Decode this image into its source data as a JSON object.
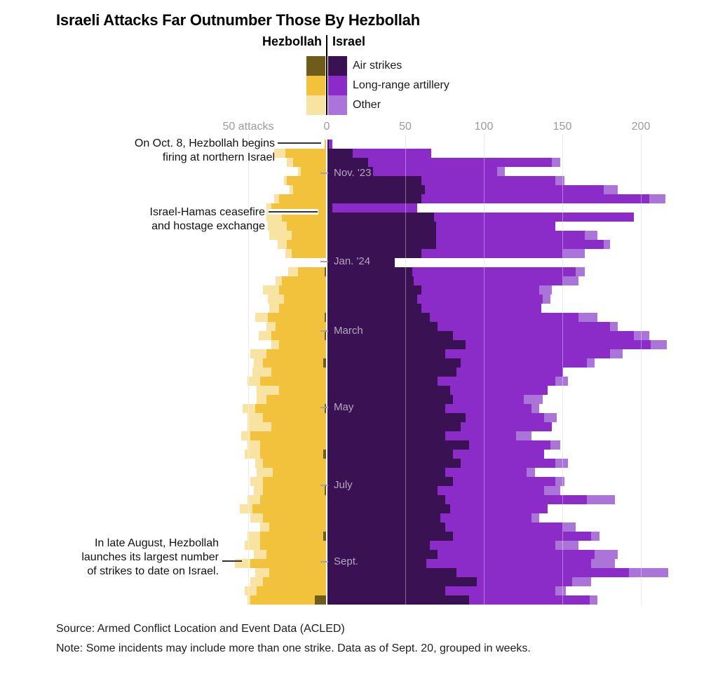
{
  "title": "Israeli Attacks Far Outnumber Those By Hezbollah",
  "legend": {
    "left_group": "Hezbollah",
    "right_group": "Israel",
    "items": [
      {
        "label": "Air strikes"
      },
      {
        "label": "Long-range artillery"
      },
      {
        "label": "Other"
      }
    ]
  },
  "annotations": [
    {
      "lines": [
        "On Oct. 8, Hezbollah begins",
        "firing at northern Israel"
      ]
    },
    {
      "lines": [
        "Israel-Hamas ceasefire",
        "and hostage exchange"
      ]
    },
    {
      "lines": [
        "In late August, Hezbollah",
        "launches its largest number",
        "of strikes to date on Israel."
      ]
    }
  ],
  "source": "Source: Armed Conflict Location and Event Data (ACLED)",
  "note": "Note: Some incidents may include more than one strike. Data as of Sept. 20, grouped in weeks.",
  "chart_data": {
    "type": "bar",
    "subtype": "diverging-stacked-horizontal",
    "unit": "attacks per week",
    "sides": {
      "left": "Hezbollah",
      "right": "Israel"
    },
    "categories": [
      "Air strikes",
      "Long-range artillery",
      "Other"
    ],
    "colors": {
      "hezbollah": [
        "#6f5c1b",
        "#f2c23d",
        "#f9e3a2"
      ],
      "israel": [
        "#3a1152",
        "#8b2cc9",
        "#ab74d9"
      ]
    },
    "x_axis": {
      "gridline_values": [
        -50,
        50,
        100,
        150,
        200
      ],
      "labels": [
        {
          "value": -50,
          "text": "50 attacks"
        },
        {
          "value": 0,
          "text": "0"
        },
        {
          "value": 50,
          "text": "50"
        },
        {
          "value": 100,
          "text": "100"
        },
        {
          "value": 150,
          "text": "150"
        },
        {
          "value": 200,
          "text": "200"
        }
      ]
    },
    "month_ticks": [
      {
        "label": "Nov. '23",
        "week": 3.7
      },
      {
        "label": "Jan. '24",
        "week": 13.35
      },
      {
        "label": "March",
        "week": 21.0
      },
      {
        "label": "May",
        "week": 29.4
      },
      {
        "label": "July",
        "week": 37.9
      },
      {
        "label": "Sept.",
        "week": 46.3
      }
    ],
    "weeks": [
      {
        "hezbollah": [
          0,
          1,
          0
        ],
        "israel": [
          1,
          2,
          0
        ]
      },
      {
        "hezbollah": [
          0,
          26,
          7
        ],
        "israel": [
          16,
          50,
          0
        ]
      },
      {
        "hezbollah": [
          0,
          21,
          4
        ],
        "israel": [
          26,
          117,
          5
        ]
      },
      {
        "hezbollah": [
          0,
          16,
          2
        ],
        "israel": [
          29,
          79,
          5
        ]
      },
      {
        "hezbollah": [
          0,
          25,
          2
        ],
        "israel": [
          60,
          85,
          6
        ]
      },
      {
        "hezbollah": [
          0,
          21,
          2
        ],
        "israel": [
          62,
          114,
          9
        ]
      },
      {
        "hezbollah": [
          0,
          30,
          3
        ],
        "israel": [
          60,
          145,
          10
        ]
      },
      {
        "hezbollah": [
          0,
          35,
          3
        ],
        "israel": [
          3,
          54,
          0
        ]
      },
      {
        "hezbollah": [
          0,
          28,
          10
        ],
        "israel": [
          68,
          127,
          0
        ]
      },
      {
        "hezbollah": [
          0,
          25,
          12
        ],
        "israel": [
          69,
          76,
          0
        ]
      },
      {
        "hezbollah": [
          0,
          22,
          14
        ],
        "israel": [
          69,
          95,
          8
        ]
      },
      {
        "hezbollah": [
          0,
          25,
          6
        ],
        "israel": [
          69,
          107,
          4
        ]
      },
      {
        "hezbollah": [
          0,
          22,
          4
        ],
        "israel": [
          60,
          90,
          14
        ]
      },
      {
        "hezbollah": [
          0,
          0,
          0
        ],
        "israel": [
          43,
          0,
          0
        ]
      },
      {
        "hezbollah": [
          1,
          17,
          6
        ],
        "israel": [
          54,
          104,
          6
        ]
      },
      {
        "hezbollah": [
          0,
          28,
          4
        ],
        "israel": [
          55,
          95,
          10
        ]
      },
      {
        "hezbollah": [
          0,
          30,
          10
        ],
        "israel": [
          60,
          75,
          8
        ]
      },
      {
        "hezbollah": [
          0,
          27,
          10
        ],
        "israel": [
          57,
          80,
          5
        ]
      },
      {
        "hezbollah": [
          0,
          30,
          6
        ],
        "israel": [
          60,
          76,
          0
        ]
      },
      {
        "hezbollah": [
          1,
          36,
          8
        ],
        "israel": [
          65,
          95,
          12
        ]
      },
      {
        "hezbollah": [
          0,
          32,
          6
        ],
        "israel": [
          70,
          110,
          5
        ]
      },
      {
        "hezbollah": [
          1,
          34,
          8
        ],
        "israel": [
          80,
          115,
          10
        ]
      },
      {
        "hezbollah": [
          0,
          30,
          5
        ],
        "israel": [
          88,
          118,
          10
        ]
      },
      {
        "hezbollah": [
          0,
          38,
          10
        ],
        "israel": [
          75,
          105,
          8
        ]
      },
      {
        "hezbollah": [
          2,
          38,
          6
        ],
        "israel": [
          85,
          80,
          5
        ]
      },
      {
        "hezbollah": [
          0,
          35,
          12
        ],
        "israel": [
          82,
          68,
          0
        ]
      },
      {
        "hezbollah": [
          0,
          42,
          8
        ],
        "israel": [
          70,
          75,
          8
        ]
      },
      {
        "hezbollah": [
          0,
          30,
          14
        ],
        "israel": [
          78,
          62,
          0
        ]
      },
      {
        "hezbollah": [
          0,
          38,
          6
        ],
        "israel": [
          80,
          45,
          12
        ]
      },
      {
        "hezbollah": [
          1,
          44,
          8
        ],
        "israel": [
          75,
          55,
          5
        ]
      },
      {
        "hezbollah": [
          0,
          40,
          10
        ],
        "israel": [
          88,
          50,
          8
        ]
      },
      {
        "hezbollah": [
          0,
          35,
          15
        ],
        "israel": [
          85,
          58,
          0
        ]
      },
      {
        "hezbollah": [
          0,
          48,
          6
        ],
        "israel": [
          75,
          45,
          10
        ]
      },
      {
        "hezbollah": [
          0,
          42,
          8
        ],
        "israel": [
          90,
          52,
          6
        ]
      },
      {
        "hezbollah": [
          2,
          40,
          10
        ],
        "israel": [
          80,
          58,
          0
        ]
      },
      {
        "hezbollah": [
          0,
          40,
          5
        ],
        "israel": [
          85,
          60,
          8
        ]
      },
      {
        "hezbollah": [
          0,
          34,
          10
        ],
        "israel": [
          75,
          52,
          5
        ]
      },
      {
        "hezbollah": [
          0,
          40,
          8
        ],
        "israel": [
          80,
          65,
          6
        ]
      },
      {
        "hezbollah": [
          1,
          39,
          6
        ],
        "israel": [
          70,
          68,
          10
        ]
      },
      {
        "hezbollah": [
          0,
          42,
          8
        ],
        "israel": [
          75,
          90,
          18
        ]
      },
      {
        "hezbollah": [
          0,
          47,
          8
        ],
        "israel": [
          78,
          62,
          0
        ]
      },
      {
        "hezbollah": [
          0,
          40,
          8
        ],
        "israel": [
          72,
          58,
          5
        ]
      },
      {
        "hezbollah": [
          0,
          36,
          6
        ],
        "israel": [
          75,
          75,
          8
        ]
      },
      {
        "hezbollah": [
          2,
          40,
          8
        ],
        "israel": [
          80,
          88,
          5
        ]
      },
      {
        "hezbollah": [
          0,
          42,
          10
        ],
        "israel": [
          65,
          80,
          15
        ]
      },
      {
        "hezbollah": [
          0,
          38,
          8
        ],
        "israel": [
          70,
          100,
          15
        ]
      },
      {
        "hezbollah": [
          0,
          48,
          10
        ],
        "israel": [
          63,
          105,
          15
        ]
      },
      {
        "hezbollah": [
          0,
          36,
          9
        ],
        "israel": [
          82,
          110,
          25
        ]
      },
      {
        "hezbollah": [
          0,
          40,
          8
        ],
        "israel": [
          95,
          61,
          12
        ]
      },
      {
        "hezbollah": [
          0,
          44,
          8
        ],
        "israel": [
          75,
          70,
          7
        ]
      },
      {
        "hezbollah": [
          7,
          41,
          2
        ],
        "israel": [
          90,
          77,
          5
        ]
      }
    ]
  }
}
